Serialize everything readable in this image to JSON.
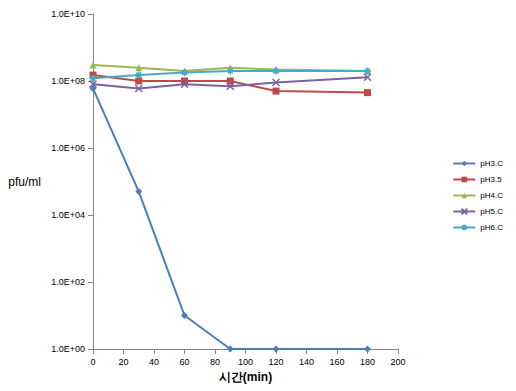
{
  "chart_data": {
    "type": "line",
    "x_label": "시간(min)",
    "y_label": "pfu/ml",
    "log": "y",
    "grid": false,
    "legend": "right",
    "xlim": [
      0,
      200
    ],
    "xticks": [
      0,
      20,
      40,
      60,
      80,
      100,
      120,
      140,
      160,
      180,
      200
    ],
    "ylim": [
      1,
      10000000000
    ],
    "yticks": [
      {
        "value": 1,
        "label": "1.0E+00"
      },
      {
        "value": 100,
        "label": "1.0E+02"
      },
      {
        "value": 10000,
        "label": "1.0E+04"
      },
      {
        "value": 1000000,
        "label": "1.0E+06"
      },
      {
        "value": 100000000,
        "label": "1.0E+08"
      },
      {
        "value": 10000000000,
        "label": "1.0E+10"
      }
    ],
    "x": [
      0,
      30,
      60,
      90,
      120,
      180
    ],
    "series": [
      {
        "name": "pH3.C",
        "color": "#4a7ebb",
        "marker": "diamond",
        "values": [
          60000000,
          50000,
          10,
          1,
          1,
          1
        ]
      },
      {
        "name": "pH3.5",
        "color": "#be4b48",
        "marker": "square",
        "values": [
          150000000,
          100000000,
          100000000,
          100000000,
          50000000,
          45000000
        ]
      },
      {
        "name": "pH4.C",
        "color": "#98b954",
        "marker": "triangle",
        "values": [
          300000000,
          250000000,
          200000000,
          250000000,
          220000000,
          200000000
        ]
      },
      {
        "name": "pH5.C",
        "color": "#7d60a0",
        "marker": "x",
        "values": [
          80000000,
          60000000,
          80000000,
          70000000,
          90000000,
          130000000
        ]
      },
      {
        "name": "pH6.C",
        "color": "#46aac5",
        "marker": "star",
        "values": [
          120000000,
          150000000,
          180000000,
          200000000,
          200000000,
          200000000
        ]
      }
    ]
  }
}
